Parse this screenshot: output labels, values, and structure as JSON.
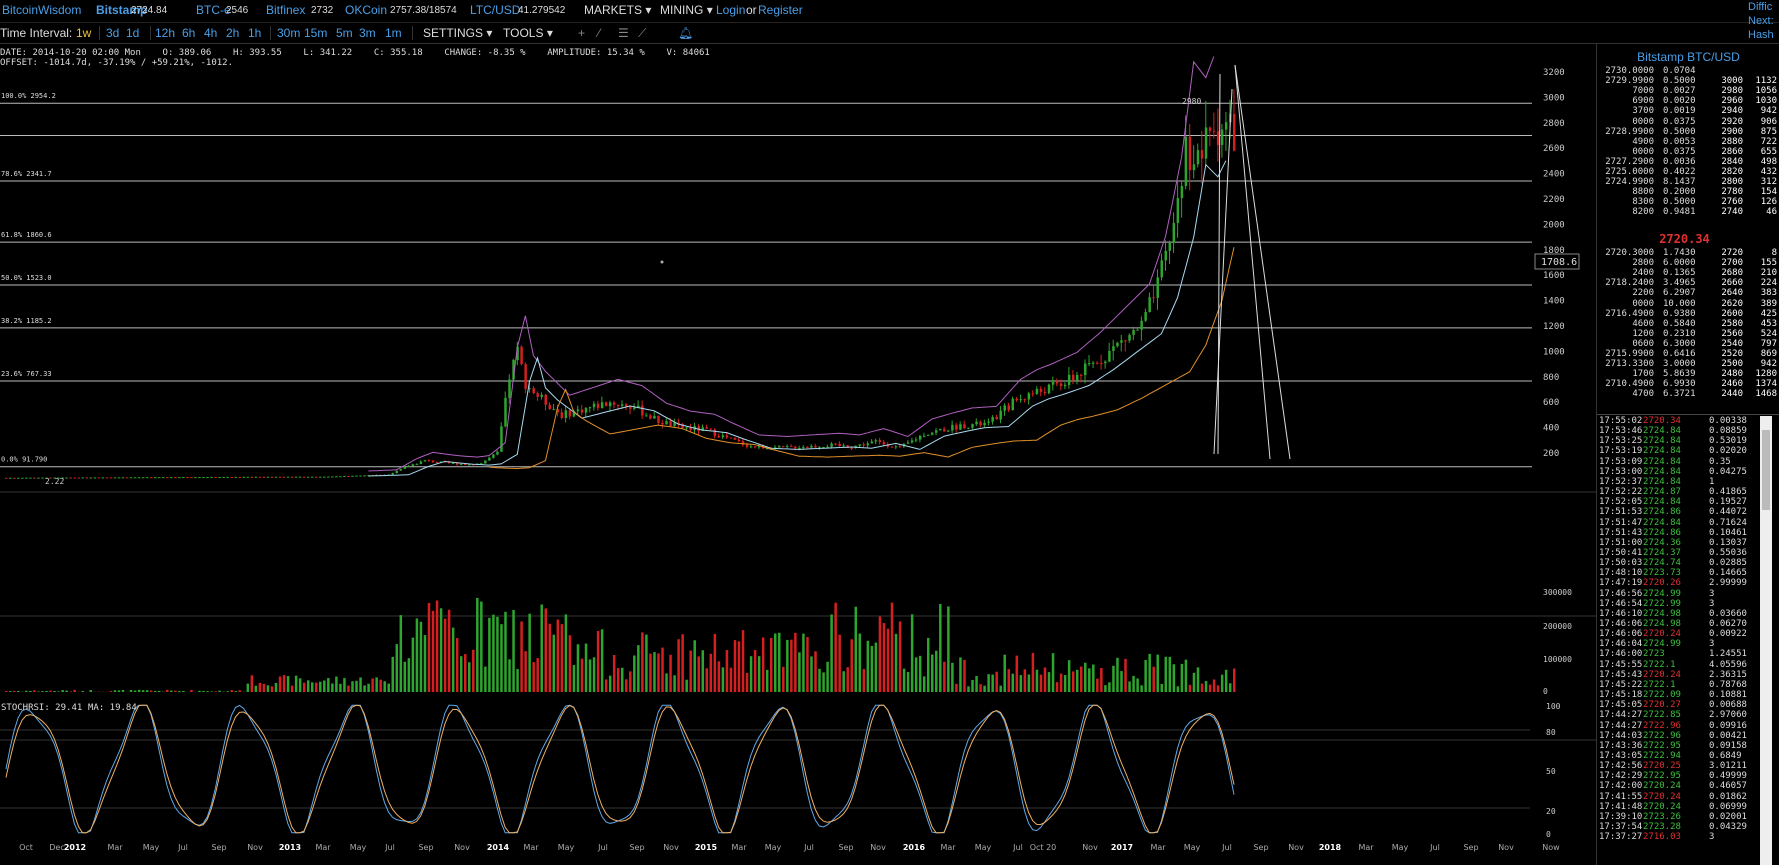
{
  "topbar": {
    "brand": "BitcoinWisdom",
    "exchanges": [
      {
        "name": "Bitstamp",
        "price": "2724.84",
        "active": true
      },
      {
        "name": "BTC-e",
        "price": "2546",
        "active": false
      },
      {
        "name": "Bitfinex",
        "price": "2732",
        "active": false
      },
      {
        "name": "OKCoin",
        "price": "2757.38/18574",
        "active": false
      },
      {
        "name": "LTC/USD",
        "price": "41.279542",
        "active": false
      }
    ],
    "markets_label": "MARKETS",
    "mining_label": "MINING",
    "login_label": "Login",
    "or_label": "or",
    "register_label": "Register",
    "edge_lines": [
      "Diffic",
      "Next:",
      "Hash"
    ]
  },
  "intervalbar": {
    "label": "Time Interval:",
    "intervals": [
      "1w",
      "3d",
      "1d",
      "12h",
      "6h",
      "4h",
      "2h",
      "1h",
      "30m",
      "15m",
      "5m",
      "3m",
      "1m"
    ],
    "active_interval": "1w",
    "settings_label": "SETTINGS",
    "tools_label": "TOOLS",
    "tool_icons": [
      "plus-icon",
      "line-icon",
      "fibonacci-icon",
      "fan-icon",
      "bell-icon"
    ]
  },
  "info": {
    "line1": "DATE: 2014-10-20 02:00 Mon    O: 389.06    H: 393.55    L: 341.22    C: 355.18    CHANGE: -8.35 %    AMPLITUDE: 15.34 %    V: 84061",
    "line2": "OFFSET: -1014.7d, -37.19% / +59.21%, -1012."
  },
  "chart": {
    "price_axis": [
      "3200",
      "3000",
      "2800",
      "2600",
      "2400",
      "2200",
      "2000",
      "1800",
      "1600",
      "1400",
      "1200",
      "1000",
      "800",
      "600",
      "400",
      "200"
    ],
    "crosshair_value": "1708.6",
    "high_marker": "2980",
    "low_marker": "2.22",
    "fib_levels": [
      {
        "label": "100.0% 2954.2",
        "price": 2954.2
      },
      {
        "label": "",
        "price": 2700
      },
      {
        "label": "78.6% 2341.7",
        "price": 2341.7
      },
      {
        "label": "61.8% 1860.6",
        "price": 1860.6
      },
      {
        "label": "50.0% 1523.0",
        "price": 1523.0
      },
      {
        "label": "38.2% 1185.2",
        "price": 1185.2
      },
      {
        "label": "23.6% 767.33",
        "price": 767.33
      },
      {
        "label": "0.0% 91.790",
        "price": 91.79
      }
    ],
    "volume_axis": [
      "300000",
      "200000",
      "100000",
      "0"
    ],
    "stoch_label": "STOCHRSI: 29.41",
    "ma_label": "MA: 19.84",
    "stoch_axis": [
      "100",
      "80",
      "50",
      "20",
      "0"
    ],
    "time_axis": [
      "Oct",
      "Dec",
      "2012",
      "Mar",
      "May",
      "Jul",
      "Sep",
      "Nov",
      "2013",
      "Mar",
      "May",
      "Jul",
      "Sep",
      "Nov",
      "2014",
      "Mar",
      "May",
      "Jul",
      "Sep",
      "Nov",
      "2015",
      "Mar",
      "May",
      "Jul",
      "Sep",
      "Nov",
      "2016",
      "Mar",
      "May",
      "Jul",
      "Oct 20",
      "Nov",
      "2017",
      "Mar",
      "May",
      "Jul",
      "Sep",
      "Nov",
      "2018",
      "Mar",
      "May",
      "Jul",
      "Sep",
      "Nov",
      "Now"
    ]
  },
  "orderbook": {
    "title": "Bitstamp BTC/USD",
    "asks": [
      {
        "price": "2730.0000",
        "amount": "0.0704",
        "depth_price": "",
        "depth_sum": ""
      },
      {
        "price": "2729.9900",
        "amount": "0.5000",
        "depth_price": "3000",
        "depth_sum": "1132"
      },
      {
        "price": "7000",
        "amount": "0.0027",
        "depth_price": "2980",
        "depth_sum": "1056"
      },
      {
        "price": "6900",
        "amount": "0.0020",
        "depth_price": "2960",
        "depth_sum": "1030"
      },
      {
        "price": "3700",
        "amount": "0.0019",
        "depth_price": "2940",
        "depth_sum": "942"
      },
      {
        "price": "0000",
        "amount": "0.0375",
        "depth_price": "2920",
        "depth_sum": "906"
      },
      {
        "price": "2728.9900",
        "amount": "0.5000",
        "depth_price": "2900",
        "depth_sum": "875"
      },
      {
        "price": "4900",
        "amount": "0.0053",
        "depth_price": "2880",
        "depth_sum": "722"
      },
      {
        "price": "0000",
        "amount": "0.0375",
        "depth_price": "2860",
        "depth_sum": "655"
      },
      {
        "price": "2727.2900",
        "amount": "0.0036",
        "depth_price": "2840",
        "depth_sum": "498"
      },
      {
        "price": "2725.0000",
        "amount": "0.4022",
        "depth_price": "2820",
        "depth_sum": "432"
      },
      {
        "price": "2724.9900",
        "amount": "8.1437",
        "depth_price": "2800",
        "depth_sum": "312"
      },
      {
        "price": "8800",
        "amount": "0.2000",
        "depth_price": "2780",
        "depth_sum": "154"
      },
      {
        "price": "8300",
        "amount": "0.5000",
        "depth_price": "2760",
        "depth_sum": "126"
      },
      {
        "price": "8200",
        "amount": "0.9481",
        "depth_price": "2740",
        "depth_sum": "46"
      }
    ],
    "last_price": "2720.34",
    "bids": [
      {
        "price": "2720.3000",
        "amount": "1.7430",
        "depth_price": "2720",
        "depth_sum": "8"
      },
      {
        "price": "2800",
        "amount": "6.0000",
        "depth_price": "2700",
        "depth_sum": "155"
      },
      {
        "price": "2400",
        "amount": "0.1365",
        "depth_price": "2680",
        "depth_sum": "210"
      },
      {
        "price": "2718.2400",
        "amount": "3.4965",
        "depth_price": "2660",
        "depth_sum": "224"
      },
      {
        "price": "2200",
        "amount": "6.2907",
        "depth_price": "2640",
        "depth_sum": "383"
      },
      {
        "price": "0000",
        "amount": "10.000",
        "depth_price": "2620",
        "depth_sum": "389"
      },
      {
        "price": "2716.4900",
        "amount": "0.9380",
        "depth_price": "2600",
        "depth_sum": "425"
      },
      {
        "price": "4600",
        "amount": "0.5840",
        "depth_price": "2580",
        "depth_sum": "453"
      },
      {
        "price": "1200",
        "amount": "0.2310",
        "depth_price": "2560",
        "depth_sum": "524"
      },
      {
        "price": "0600",
        "amount": "6.3000",
        "depth_price": "2540",
        "depth_sum": "797"
      },
      {
        "price": "2715.9900",
        "amount": "0.6416",
        "depth_price": "2520",
        "depth_sum": "869"
      },
      {
        "price": "2713.3300",
        "amount": "3.0000",
        "depth_price": "2500",
        "depth_sum": "942"
      },
      {
        "price": "1700",
        "amount": "5.8639",
        "depth_price": "2480",
        "depth_sum": "1280"
      },
      {
        "price": "2710.4900",
        "amount": "6.9930",
        "depth_price": "2460",
        "depth_sum": "1374"
      },
      {
        "price": "4700",
        "amount": "6.3721",
        "depth_price": "2440",
        "depth_sum": "1468"
      }
    ]
  },
  "trades": [
    {
      "time": "17:55:02",
      "price": "2720.34",
      "amount": "0.00338",
      "side": "sell"
    },
    {
      "time": "17:53:46",
      "price": "2724.84",
      "amount": "0.08859",
      "side": "buy"
    },
    {
      "time": "17:53:25",
      "price": "2724.84",
      "amount": "0.53019",
      "side": "buy"
    },
    {
      "time": "17:53:19",
      "price": "2724.84",
      "amount": "0.02020",
      "side": "buy"
    },
    {
      "time": "17:53:09",
      "price": "2724.84",
      "amount": "0.35",
      "side": "buy"
    },
    {
      "time": "17:53:00",
      "price": "2724.84",
      "amount": "0.04275",
      "side": "buy"
    },
    {
      "time": "17:52:37",
      "price": "2724.84",
      "amount": "1",
      "side": "buy"
    },
    {
      "time": "17:52:22",
      "price": "2724.87",
      "amount": "0.41865",
      "side": "buy"
    },
    {
      "time": "17:52:05",
      "price": "2724.84",
      "amount": "0.19527",
      "side": "buy"
    },
    {
      "time": "17:51:53",
      "price": "2724.86",
      "amount": "0.44072",
      "side": "buy"
    },
    {
      "time": "17:51:47",
      "price": "2724.84",
      "amount": "0.71624",
      "side": "buy"
    },
    {
      "time": "17:51:43",
      "price": "2724.86",
      "amount": "0.10461",
      "side": "buy"
    },
    {
      "time": "17:51:00",
      "price": "2724.36",
      "amount": "0.13037",
      "side": "buy"
    },
    {
      "time": "17:50:41",
      "price": "2724.37",
      "amount": "0.55036",
      "side": "buy"
    },
    {
      "time": "17:50:03",
      "price": "2724.74",
      "amount": "0.02885",
      "side": "buy"
    },
    {
      "time": "17:48:10",
      "price": "2723.73",
      "amount": "0.14665",
      "side": "buy"
    },
    {
      "time": "17:47:19",
      "price": "2720.26",
      "amount": "2.99999",
      "side": "sell"
    },
    {
      "time": "17:46:56",
      "price": "2724.99",
      "amount": "3",
      "side": "buy"
    },
    {
      "time": "17:46:54",
      "price": "2722.99",
      "amount": "3",
      "side": "buy"
    },
    {
      "time": "17:46:10",
      "price": "2724.98",
      "amount": "0.03660",
      "side": "buy"
    },
    {
      "time": "17:46:06",
      "price": "2724.98",
      "amount": "0.06270",
      "side": "buy"
    },
    {
      "time": "17:46:06",
      "price": "2720.24",
      "amount": "0.00922",
      "side": "sell"
    },
    {
      "time": "17:46:04",
      "price": "2724.99",
      "amount": "3",
      "side": "buy"
    },
    {
      "time": "17:46:00",
      "price": "2723",
      "amount": "1.24551",
      "side": "buy"
    },
    {
      "time": "17:45:55",
      "price": "2722.1",
      "amount": "4.05596",
      "side": "buy"
    },
    {
      "time": "17:45:43",
      "price": "2720.24",
      "amount": "2.36315",
      "side": "sell"
    },
    {
      "time": "17:45:22",
      "price": "2722.1",
      "amount": "0.78768",
      "side": "buy"
    },
    {
      "time": "17:45:18",
      "price": "2722.09",
      "amount": "0.10881",
      "side": "buy"
    },
    {
      "time": "17:45:05",
      "price": "2720.27",
      "amount": "0.00688",
      "side": "sell"
    },
    {
      "time": "17:44:27",
      "price": "2722.85",
      "amount": "2.97060",
      "side": "buy"
    },
    {
      "time": "17:44:27",
      "price": "2722.96",
      "amount": "0.09916",
      "side": "sell"
    },
    {
      "time": "17:44:03",
      "price": "2722.96",
      "amount": "0.00421",
      "side": "buy"
    },
    {
      "time": "17:43:36",
      "price": "2722.95",
      "amount": "0.09158",
      "side": "buy"
    },
    {
      "time": "17:43:05",
      "price": "2722.94",
      "amount": "0.6849",
      "side": "buy"
    },
    {
      "time": "17:42:56",
      "price": "2720.25",
      "amount": "3.01211",
      "side": "sell"
    },
    {
      "time": "17:42:29",
      "price": "2722.95",
      "amount": "0.49999",
      "side": "buy"
    },
    {
      "time": "17:42:00",
      "price": "2720.24",
      "amount": "0.46057",
      "side": "buy"
    },
    {
      "time": "17:41:55",
      "price": "2720.24",
      "amount": "0.01862",
      "side": "sell"
    },
    {
      "time": "17:41:48",
      "price": "2720.24",
      "amount": "0.06999",
      "side": "buy"
    },
    {
      "time": "17:39:10",
      "price": "2723.26",
      "amount": "0.02001",
      "side": "buy"
    },
    {
      "time": "17:37:54",
      "price": "2723.28",
      "amount": "0.04329",
      "side": "buy"
    },
    {
      "time": "17:37:27",
      "price": "2716.03",
      "amount": "3",
      "side": "sell"
    }
  ],
  "colors": {
    "up": "#2ea52e",
    "down": "#d42020",
    "brand": "#4a9fe8",
    "ma_pink": "#b060c0",
    "ma_blue": "#a8d8f0",
    "ma_orange": "#e0902a",
    "stoch_blue": "#60a8e8",
    "stoch_orange": "#f0b060"
  }
}
